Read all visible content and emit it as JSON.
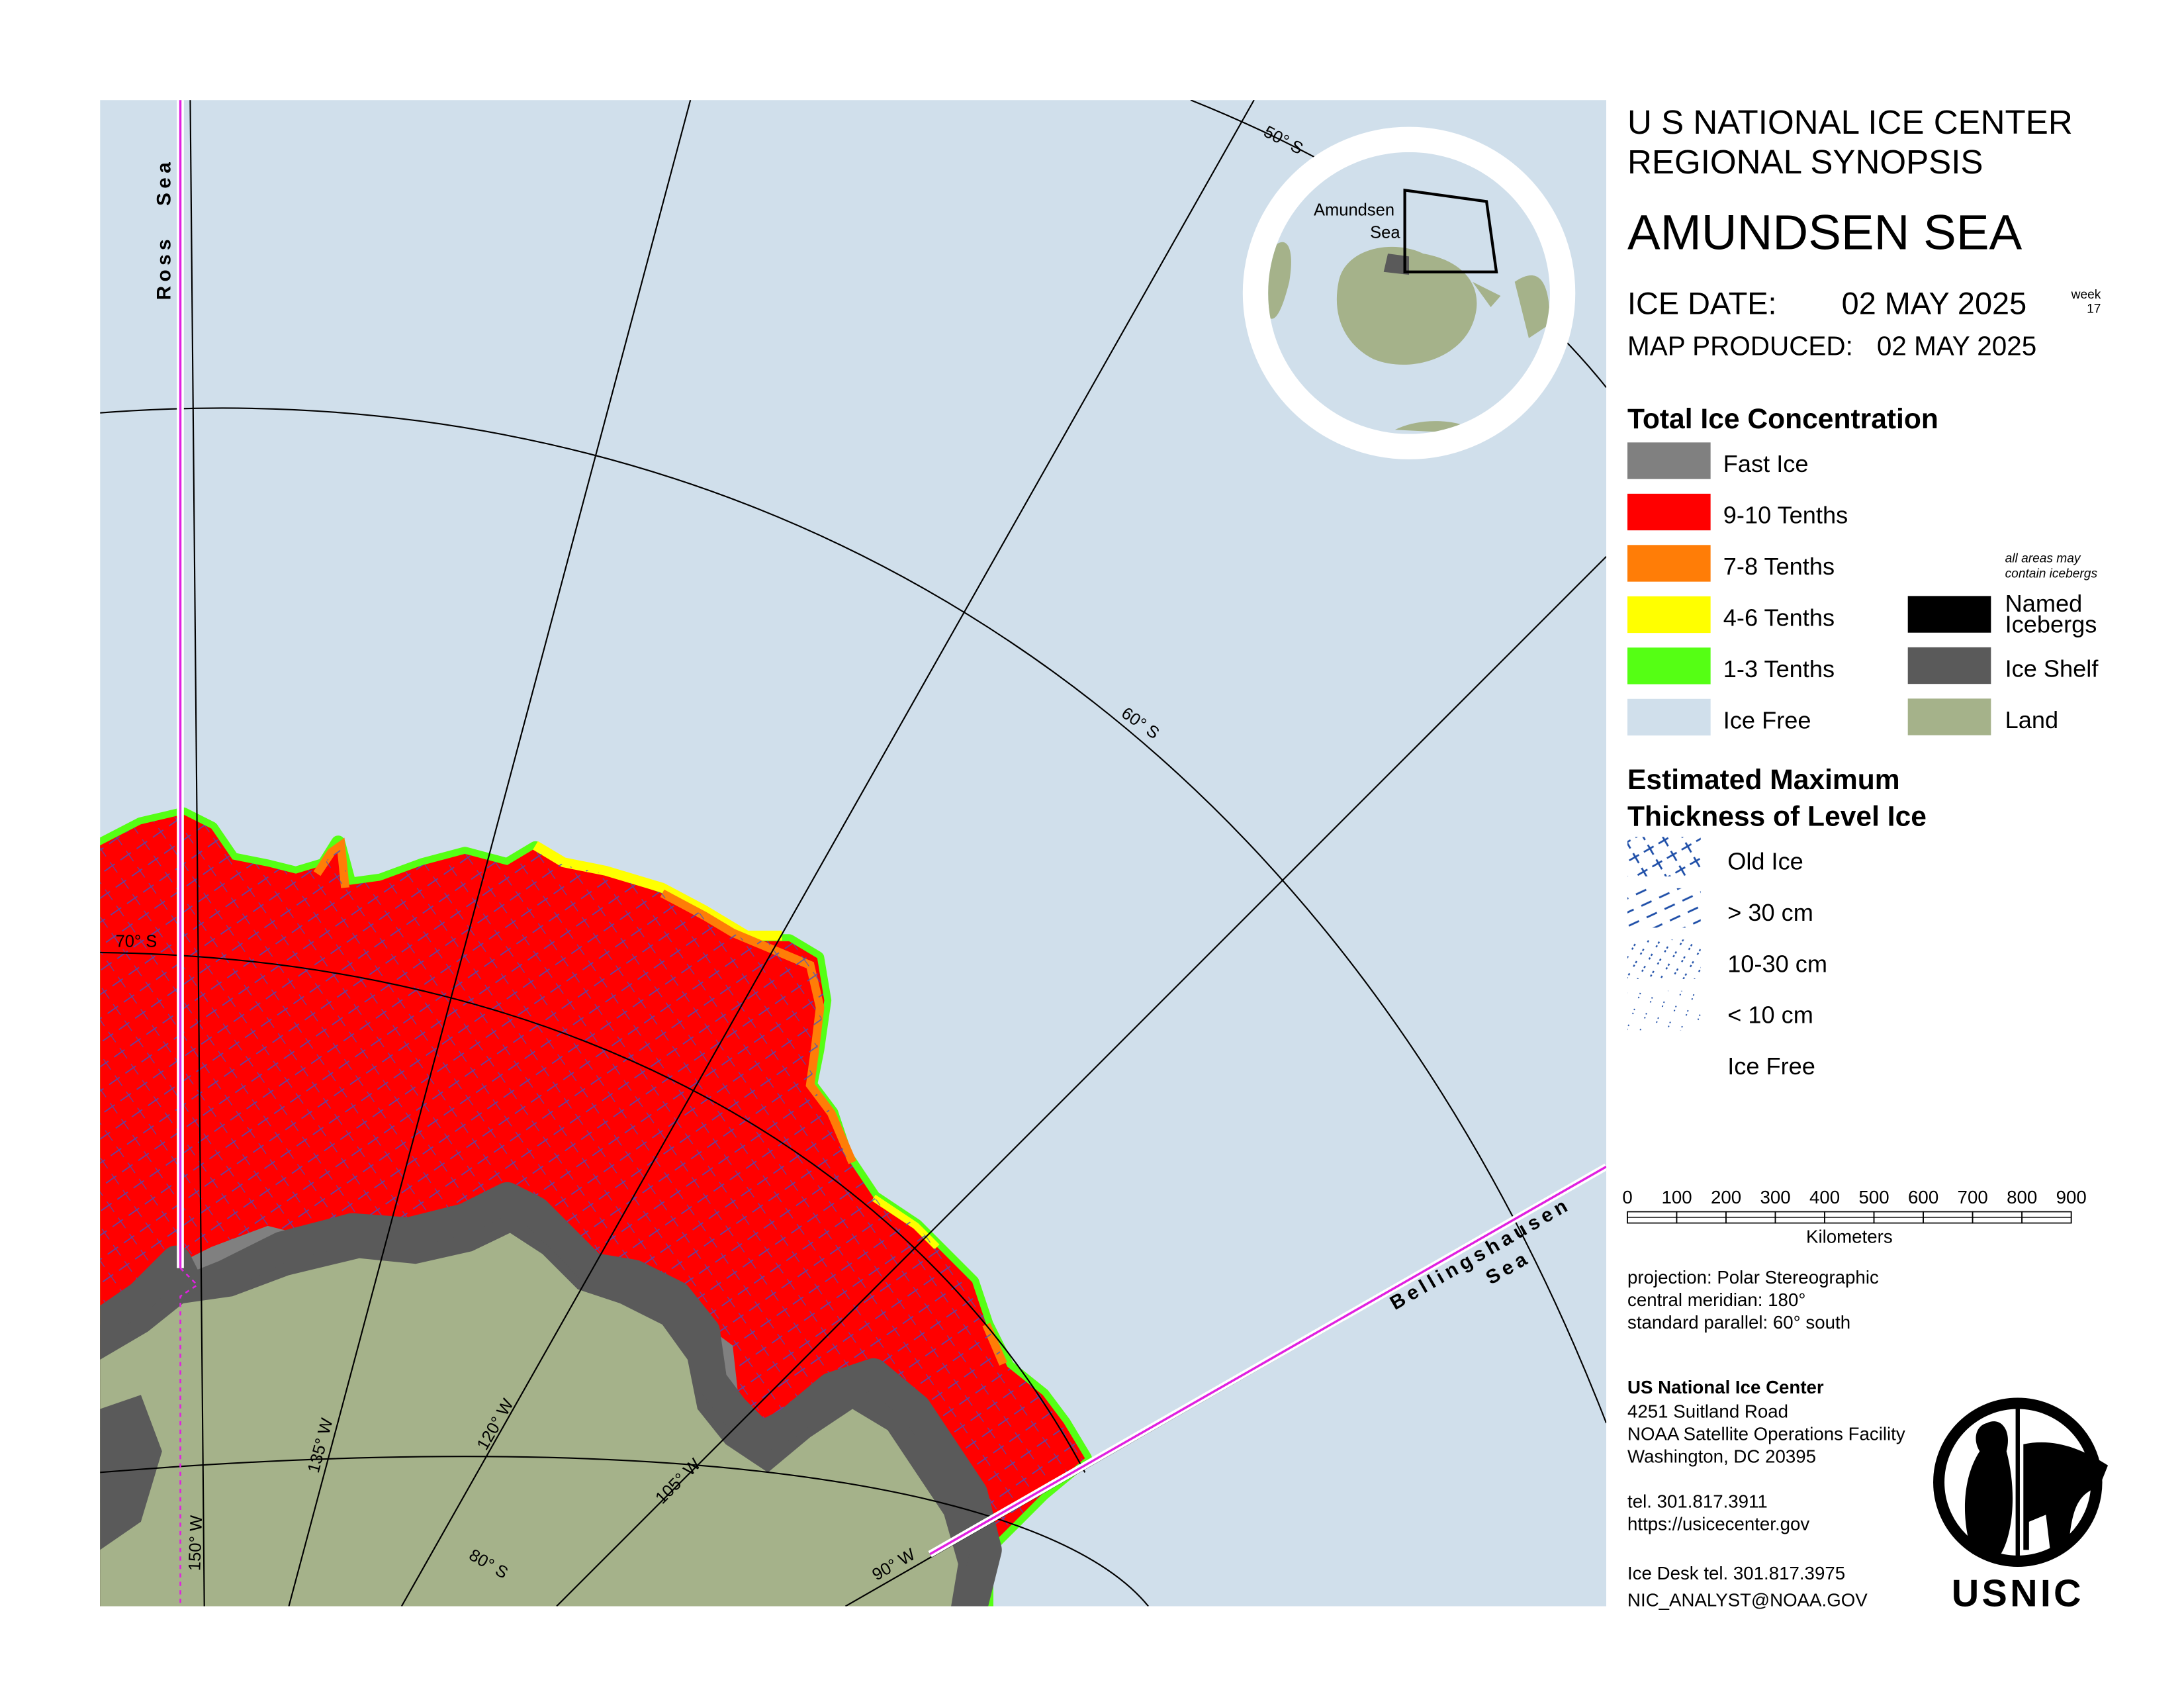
{
  "header": {
    "agency": "U S NATIONAL ICE CENTER",
    "product": "REGIONAL SYNOPSIS",
    "region": "AMUNDSEN SEA",
    "ice_date_label": "ICE DATE:",
    "ice_date": "02 MAY 2025",
    "week_label": "week",
    "week": "17",
    "map_produced_label": "MAP PRODUCED:",
    "map_produced": "02 MAY 2025"
  },
  "concentration_legend": {
    "title": "Total Ice Concentration",
    "items": [
      {
        "label": "Fast Ice",
        "color": "#808080"
      },
      {
        "label": "9-10 Tenths",
        "color": "#ff0000"
      },
      {
        "label": "7-8 Tenths",
        "color": "#ff7d07"
      },
      {
        "label": "4-6 Tenths",
        "color": "#ffff00"
      },
      {
        "label": "1-3 Tenths",
        "color": "#55ff14"
      },
      {
        "label": "Ice Free",
        "color": "#d0dfeb"
      }
    ],
    "note": [
      "all areas may",
      "contain icebergs"
    ],
    "other_items": [
      {
        "label": [
          "Named",
          "Icebergs"
        ],
        "color": "#000000"
      },
      {
        "label": [
          "Ice Shelf"
        ],
        "color": "#5a5a5a"
      },
      {
        "label": [
          "Land"
        ],
        "color": "#a5b28a"
      }
    ]
  },
  "thickness_legend": {
    "title": [
      "Estimated Maximum",
      "Thickness of Level Ice"
    ],
    "items": [
      "Old Ice",
      "> 30 cm",
      "10-30 cm",
      "< 10 cm",
      "Ice Free"
    ]
  },
  "scale_bar": {
    "ticks": [
      0,
      100,
      200,
      300,
      400,
      500,
      600,
      700,
      800,
      900
    ],
    "unit": "Kilometers"
  },
  "projection": [
    "projection: Polar Stereographic",
    "central meridian: 180°",
    "standard parallel:  60° south"
  ],
  "contact": {
    "name": "US National Ice Center",
    "address": [
      "4251 Suitland Road",
      "NOAA Satellite Operations Facility",
      "Washington, DC  20395"
    ],
    "tel": "tel. 301.817.3911",
    "url": "https://usicecenter.gov",
    "ice_desk": "Ice Desk tel. 301.817.3975",
    "email": "NIC_ANALYST@NOAA.GOV"
  },
  "logo": "USNIC",
  "map": {
    "ross_sea": "Ross   Sea",
    "bellingshausen_sea": [
      "Bellingshausen",
      "Sea"
    ],
    "inset_label": [
      "Amundsen",
      "Sea"
    ],
    "graticule": {
      "lat_50": "50° S",
      "lat_60": "60° S",
      "lat_70": "70° S",
      "lat_80": "80° S",
      "lon_150": "150° W",
      "lon_135": "135° W",
      "lon_120": "120° W",
      "lon_105": "105° W",
      "lon_90": "90° W"
    }
  }
}
